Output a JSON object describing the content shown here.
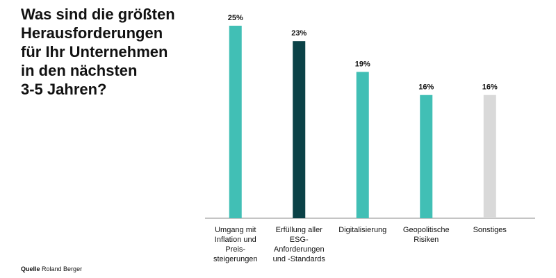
{
  "chart_data": {
    "type": "bar",
    "title": "Was sind die größten\nHerausforderungen\nfür Ihr Unternehmen\nin den nächsten\n3-5 Jahren?",
    "categories": [
      "Umgang mit\nInflation und\nPreis-\nsteigerungen",
      "Erfüllung aller\nESG-\nAnforderungen\nund -Standards",
      "Digitalisierung",
      "Geopolitische\nRisiken",
      "Sonstiges"
    ],
    "values": [
      25,
      23,
      19,
      16,
      16
    ],
    "value_labels": [
      "25%",
      "23%",
      "19%",
      "16%",
      "16%"
    ],
    "colors": [
      "#41bfb5",
      "#0b4247",
      "#41bfb5",
      "#41bfb5",
      "#d9d9d9"
    ],
    "ylim": [
      0,
      25
    ],
    "source_label": "Quelle",
    "source": "Roland Berger"
  }
}
